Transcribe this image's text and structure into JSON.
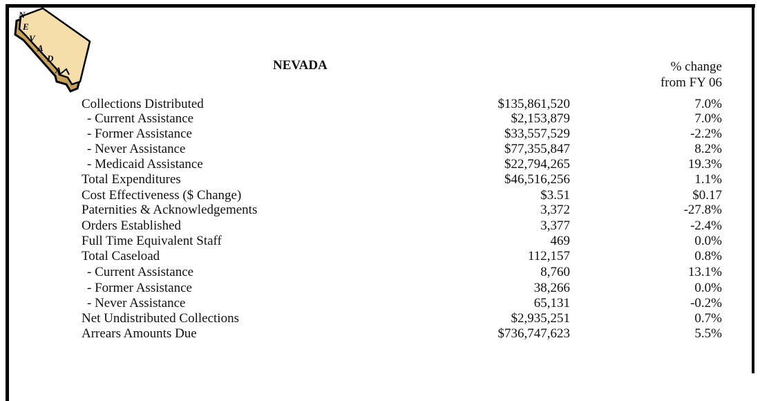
{
  "map_letters": [
    "N",
    "E",
    "V",
    "A",
    "D",
    "A"
  ],
  "title": "NEVADA",
  "header": {
    "line1": "% change",
    "line2": "from FY 06"
  },
  "rows": [
    [
      "Collections Distributed",
      "$135,861,520",
      "7.0%"
    ],
    [
      "- Current Assistance",
      "$2,153,879",
      "7.0%"
    ],
    [
      "- Former Assistance",
      "$33,557,529",
      "-2.2%"
    ],
    [
      "- Never Assistance",
      "$77,355,847",
      "8.2%"
    ],
    [
      "- Medicaid Assistance",
      "$22,794,265",
      "19.3%"
    ],
    [
      "Total Expenditures",
      "$46,516,256",
      "1.1%"
    ],
    [
      "Cost Effectiveness ($ Change)",
      "$3.51",
      "$0.17"
    ],
    [
      "Paternities & Acknowledgements",
      "3,372",
      "-27.8%"
    ],
    [
      "Orders Established",
      "3,377",
      "-2.4%"
    ],
    [
      "Full Time Equivalent Staff",
      "469",
      "0.0%"
    ],
    [
      "Total Caseload",
      "112,157",
      "0.8%"
    ],
    [
      "- Current Assistance",
      "8,760",
      "13.1%"
    ],
    [
      "- Former Assistance",
      "38,266",
      "0.0%"
    ],
    [
      "- Never Assistance",
      "65,131",
      "-0.2%"
    ],
    [
      "Net Undistributed Collections",
      "$2,935,251",
      "0.7%"
    ],
    [
      "Arrears Amounts Due",
      "$736,747,623",
      "5.5%"
    ]
  ]
}
